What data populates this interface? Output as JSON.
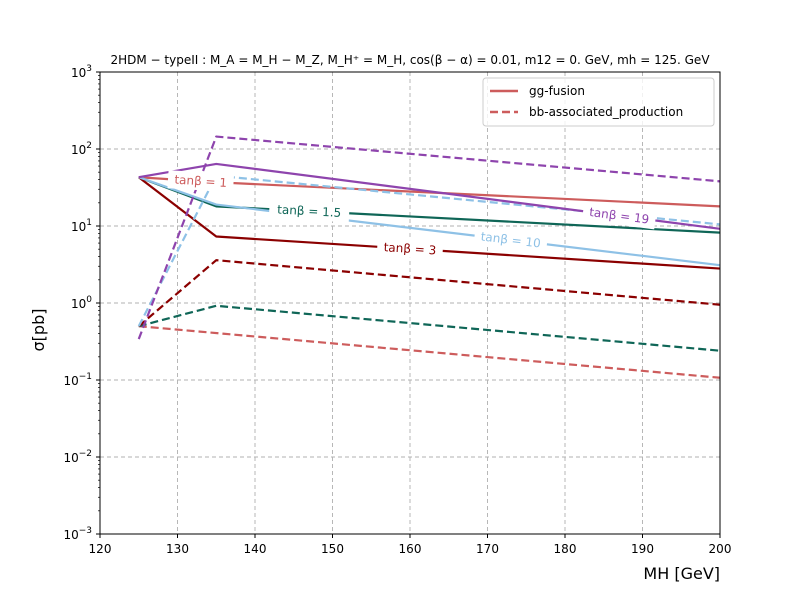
{
  "chart_data": {
    "type": "line",
    "title": "2HDM − typeII : M_A = M_H − M_Z, M_H⁺ = M_H, cos(β − α) = 0.01, m12 = 0. GeV, mh = 125. GeV",
    "xlabel": "MH [GeV]",
    "ylabel": "σ[pb]",
    "xlim": [
      120,
      200
    ],
    "ylim": [
      0.001,
      1000
    ],
    "yscale": "log",
    "grid": true,
    "legend_position": "top-right",
    "x_ticks": [
      120,
      130,
      140,
      150,
      160,
      170,
      180,
      190,
      200
    ],
    "x_tick_labels": [
      "120",
      "130",
      "140",
      "150",
      "160",
      "170",
      "180",
      "190",
      "200"
    ],
    "y_ticks": [
      0.001,
      0.01,
      0.1,
      1,
      10,
      100,
      1000
    ],
    "y_tick_labels": [
      {
        "base": "10",
        "exp": "−3"
      },
      {
        "base": "10",
        "exp": "−2"
      },
      {
        "base": "10",
        "exp": "−1"
      },
      {
        "base": "10",
        "exp": "0"
      },
      {
        "base": "10",
        "exp": "1"
      },
      {
        "base": "10",
        "exp": "2"
      },
      {
        "base": "10",
        "exp": "3"
      }
    ],
    "legend": [
      {
        "name": "gg-fusion",
        "style": "solid",
        "color": "#cd5c5c"
      },
      {
        "name": "bb-associated_production",
        "style": "dashed",
        "color": "#cd5c5c"
      }
    ],
    "series": [
      {
        "name": "gg-fusion tanβ = 1",
        "label": "tanβ = 1",
        "label_x": 133,
        "style": "solid",
        "color": "#cd5c5c",
        "x": [
          125,
          135,
          200
        ],
        "y": [
          43,
          37,
          18
        ]
      },
      {
        "name": "bb tanβ = 1",
        "style": "dashed",
        "color": "#cd5c5c",
        "x": [
          125,
          200
        ],
        "y": [
          0.5,
          0.107
        ]
      },
      {
        "name": "gg-fusion tanβ = 1.5",
        "label": "tanβ = 1.5",
        "label_x": 147,
        "style": "solid",
        "color": "#0f6657",
        "x": [
          125,
          135,
          200
        ],
        "y": [
          43,
          18,
          8.2
        ]
      },
      {
        "name": "bb tanβ = 1.5",
        "style": "dashed",
        "color": "#0f6657",
        "x": [
          125,
          135,
          200
        ],
        "y": [
          0.5,
          0.92,
          0.24
        ]
      },
      {
        "name": "gg-fusion tanβ = 3",
        "label": "tanβ = 3",
        "label_x": 160,
        "style": "solid",
        "color": "#8b0000",
        "x": [
          125,
          135,
          200
        ],
        "y": [
          43,
          7.3,
          2.8
        ]
      },
      {
        "name": "bb tanβ = 3",
        "style": "dashed",
        "color": "#8b0000",
        "x": [
          125,
          135,
          200
        ],
        "y": [
          0.5,
          3.6,
          0.95
        ]
      },
      {
        "name": "gg-fusion tanβ = 10",
        "label": "tanβ = 10",
        "label_x": 173,
        "style": "solid",
        "color": "#8ec1e6",
        "x": [
          125,
          135,
          200
        ],
        "y": [
          43,
          19,
          3.1
        ]
      },
      {
        "name": "bb tanβ = 10",
        "style": "dashed",
        "color": "#8ec1e6",
        "x": [
          125,
          135,
          200
        ],
        "y": [
          0.5,
          45,
          10.5
        ]
      },
      {
        "name": "gg-fusion tanβ = 19",
        "label": "tanβ = 19",
        "label_x": 187,
        "style": "solid",
        "color": "#8e44ad",
        "x": [
          125,
          135,
          200
        ],
        "y": [
          43,
          64,
          9.2
        ]
      },
      {
        "name": "bb tanβ = 19",
        "style": "dashed",
        "color": "#8e44ad",
        "x": [
          125,
          135,
          200
        ],
        "y": [
          0.34,
          145,
          38
        ]
      }
    ]
  }
}
